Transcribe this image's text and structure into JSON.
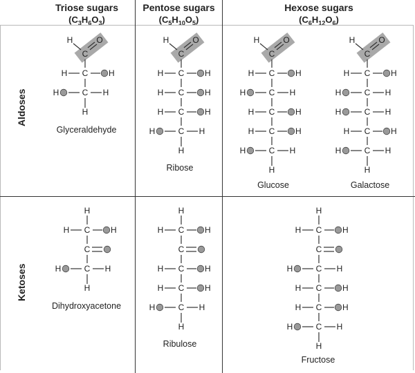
{
  "columns": [
    {
      "title": "Triose sugars",
      "formula": [
        "C",
        "3",
        "H",
        "6",
        "O",
        "3"
      ]
    },
    {
      "title": "Pentose sugars",
      "formula": [
        "C",
        "5",
        "H",
        "10",
        "O",
        "5"
      ]
    },
    {
      "title": "Hexose sugars",
      "formula": [
        "C",
        "6",
        "H",
        "12",
        "O",
        "6"
      ]
    }
  ],
  "rows": {
    "aldoses": "Aldoses",
    "ketoses": "Ketoses"
  },
  "names": {
    "glyceraldehyde": "Glyceraldehyde",
    "ribose": "Ribose",
    "glucose": "Glucose",
    "galactose": "Galactose",
    "dihydroxyacetone": "Dihydroxyacetone",
    "ribulose": "Ribulose",
    "fructose": "Fructose"
  },
  "atoms": {
    "h": "H",
    "c": "C",
    "o": "O",
    "oh": "OH",
    "ho": "HO"
  },
  "colors": {
    "highlight": "#a9a9a9",
    "oxygen_dot": "#9a9a9a",
    "divider": "#333333"
  },
  "structures": {
    "glyceraldehyde": {
      "top": "CHO",
      "rows": [
        "R",
        "L"
      ]
    },
    "ribose": {
      "top": "CHO",
      "rows": [
        "R",
        "R",
        "R",
        "L"
      ]
    },
    "glucose": {
      "top": "CHO",
      "rows": [
        "R",
        "L",
        "R",
        "R",
        "L"
      ]
    },
    "galactose": {
      "top": "CHO",
      "rows": [
        "R",
        "L",
        "L",
        "R",
        "L"
      ]
    },
    "dihydroxyacetone": {
      "top": "CH2OH",
      "rows": [
        "CO",
        "L"
      ]
    },
    "ribulose": {
      "top": "CH2OH",
      "rows": [
        "CO",
        "R",
        "R",
        "L"
      ]
    },
    "fructose": {
      "top": "CH2OH",
      "rows": [
        "CO",
        "L",
        "R",
        "R",
        "L"
      ]
    }
  }
}
